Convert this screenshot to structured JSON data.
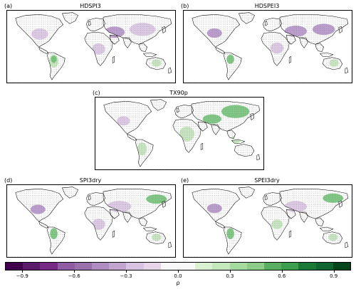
{
  "panels": [
    {
      "tag": "(a)",
      "title": "HDSPI3"
    },
    {
      "tag": "(b)",
      "title": "HDSPEI3"
    },
    {
      "tag": "(c)",
      "title": "TX90p"
    },
    {
      "tag": "(d)",
      "title": "SPI3dry"
    },
    {
      "tag": "(e)",
      "title": "SPEI3dry"
    }
  ],
  "colorbar": {
    "label": "ρ",
    "ticks": [
      "−0.9",
      "−0.6",
      "−0.3",
      "0.0",
      "0.3",
      "0.6",
      "0.9"
    ],
    "range": [
      -1.0,
      1.0
    ],
    "colors": [
      "#40004b",
      "#5c1a6a",
      "#762a83",
      "#8f5ba3",
      "#9970ab",
      "#af8dc3",
      "#c2a5cf",
      "#d8c3e2",
      "#e7d4e8",
      "#f7f7f7",
      "#f7f7f7",
      "#d9f0d3",
      "#c3e8bb",
      "#a6dba0",
      "#8ccc88",
      "#5aae61",
      "#3e9e50",
      "#1b7837",
      "#0f6630",
      "#00441b"
    ]
  },
  "style": {
    "land": "#ffffff",
    "coast": "#000000",
    "purple": "#b08ec6",
    "purple_light": "#d8c3e2",
    "green": "#6cbf72",
    "green_light": "#bfe3b7",
    "stipple": "#555555"
  }
}
